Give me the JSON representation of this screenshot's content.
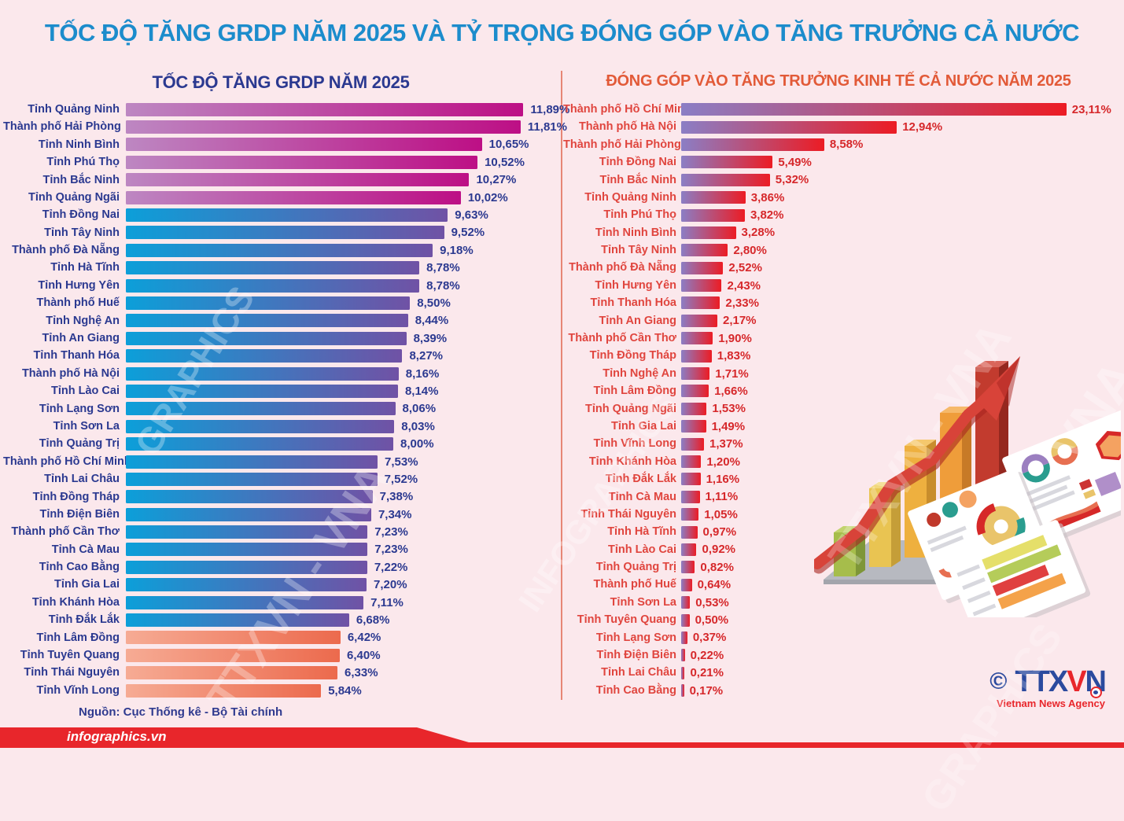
{
  "page": {
    "title": "TỐC ĐỘ TĂNG GRDP NĂM 2025 VÀ TỶ TRỌNG ĐÓNG GÓP VÀO TĂNG TRƯỞNG CẢ NƯỚC",
    "source": "Nguồn: Cục Thống kê - Bộ Tài chính",
    "footer_brand": "infographics.vn",
    "logo": {
      "copyright": "©",
      "part1": "TTX",
      "part2": "V",
      "part3": "N",
      "tagline": "Vietnam News Agency"
    },
    "watermarks": {
      "w1": "GRAPHICS",
      "w2": "TTXVN - VNA",
      "w3": "INFOGRAPHICS",
      "w4": "TTXVN - VNA",
      "w5": "VNA",
      "w6": "GRAPHICS"
    },
    "colors": {
      "background": "#fbe8ec",
      "main_title": "#1c8ccc",
      "left_title": "#2b3990",
      "right_title": "#e25a38",
      "left_text": "#2b3990",
      "right_label": "#e0453e",
      "right_value": "#d6282b",
      "footer_bar": "#e8262b"
    }
  },
  "chart_data": [
    {
      "type": "bar",
      "orientation": "horizontal",
      "title": "TỐC ĐỘ TĂNG GRDP NĂM 2025",
      "unit": "%",
      "xlim": [
        0,
        12
      ],
      "grid": false,
      "legend": "none",
      "groups": {
        "magenta": [
          "#bd87c2",
          "#bd0f85"
        ],
        "blue": [
          "#0c9fd9",
          "#7052a5"
        ],
        "orange": [
          "#f6ab94",
          "#ec6a4d"
        ]
      },
      "bars": [
        {
          "label": "Tỉnh Quảng Ninh",
          "value": 11.89,
          "display": "11,89%",
          "group": "magenta"
        },
        {
          "label": "Thành phố Hải Phòng",
          "value": 11.81,
          "display": "11,81%",
          "group": "magenta"
        },
        {
          "label": "Tỉnh Ninh Bình",
          "value": 10.65,
          "display": "10,65%",
          "group": "magenta"
        },
        {
          "label": "Tỉnh Phú Thọ",
          "value": 10.52,
          "display": "10,52%",
          "group": "magenta"
        },
        {
          "label": "Tỉnh Bắc Ninh",
          "value": 10.27,
          "display": "10,27%",
          "group": "magenta"
        },
        {
          "label": "Tỉnh Quảng Ngãi",
          "value": 10.02,
          "display": "10,02%",
          "group": "magenta"
        },
        {
          "label": "Tỉnh Đồng Nai",
          "value": 9.63,
          "display": "9,63%",
          "group": "blue"
        },
        {
          "label": "Tỉnh Tây Ninh",
          "value": 9.52,
          "display": "9,52%",
          "group": "blue"
        },
        {
          "label": "Thành phố Đà Nẵng",
          "value": 9.18,
          "display": "9,18%",
          "group": "blue"
        },
        {
          "label": "Tỉnh Hà Tĩnh",
          "value": 8.78,
          "display": "8,78%",
          "group": "blue"
        },
        {
          "label": "Tỉnh Hưng Yên",
          "value": 8.78,
          "display": "8,78%",
          "group": "blue"
        },
        {
          "label": "Thành phố Huế",
          "value": 8.5,
          "display": "8,50%",
          "group": "blue"
        },
        {
          "label": "Tỉnh Nghệ An",
          "value": 8.44,
          "display": "8,44%",
          "group": "blue"
        },
        {
          "label": "Tỉnh An Giang",
          "value": 8.39,
          "display": "8,39%",
          "group": "blue"
        },
        {
          "label": "Tỉnh Thanh Hóa",
          "value": 8.27,
          "display": "8,27%",
          "group": "blue"
        },
        {
          "label": "Thành phố Hà Nội",
          "value": 8.16,
          "display": "8,16%",
          "group": "blue"
        },
        {
          "label": "Tỉnh Lào Cai",
          "value": 8.14,
          "display": "8,14%",
          "group": "blue"
        },
        {
          "label": "Tỉnh Lạng Sơn",
          "value": 8.06,
          "display": "8,06%",
          "group": "blue"
        },
        {
          "label": "Tỉnh Sơn La",
          "value": 8.03,
          "display": "8,03%",
          "group": "blue"
        },
        {
          "label": "Tỉnh Quảng Trị",
          "value": 8.0,
          "display": "8,00%",
          "group": "blue"
        },
        {
          "label": "Thành phố Hồ Chí Minh",
          "value": 7.53,
          "display": "7,53%",
          "group": "blue"
        },
        {
          "label": "Tỉnh Lai Châu",
          "value": 7.52,
          "display": "7,52%",
          "group": "blue"
        },
        {
          "label": "Tỉnh Đồng Tháp",
          "value": 7.38,
          "display": "7,38%",
          "group": "blue"
        },
        {
          "label": "Tỉnh Điện Biên",
          "value": 7.34,
          "display": "7,34%",
          "group": "blue"
        },
        {
          "label": "Thành phố Cần Thơ",
          "value": 7.23,
          "display": "7,23%",
          "group": "blue"
        },
        {
          "label": "Tỉnh Cà Mau",
          "value": 7.23,
          "display": "7,23%",
          "group": "blue"
        },
        {
          "label": "Tỉnh Cao Bằng",
          "value": 7.22,
          "display": "7,22%",
          "group": "blue"
        },
        {
          "label": "Tỉnh Gia Lai",
          "value": 7.2,
          "display": "7,20%",
          "group": "blue"
        },
        {
          "label": "Tỉnh Khánh Hòa",
          "value": 7.11,
          "display": "7,11%",
          "group": "blue"
        },
        {
          "label": "Tỉnh Đắk Lắk",
          "value": 6.68,
          "display": "6,68%",
          "group": "blue"
        },
        {
          "label": "Tỉnh Lâm Đồng",
          "value": 6.42,
          "display": "6,42%",
          "group": "orange"
        },
        {
          "label": "Tỉnh Tuyên Quang",
          "value": 6.4,
          "display": "6,40%",
          "group": "orange"
        },
        {
          "label": "Tỉnh Thái Nguyên",
          "value": 6.33,
          "display": "6,33%",
          "group": "orange"
        },
        {
          "label": "Tỉnh Vĩnh Long",
          "value": 5.84,
          "display": "5,84%",
          "group": "orange"
        }
      ]
    },
    {
      "type": "bar",
      "orientation": "horizontal",
      "title": "ĐÓNG GÓP VÀO TĂNG TRƯỞNG KINH TẾ CẢ NƯỚC NĂM 2025",
      "unit": "%",
      "xlim": [
        0,
        23.5
      ],
      "grid": false,
      "legend": "none",
      "groups": {
        "redblue": [
          "#8b7ec5",
          "#ec1c24"
        ]
      },
      "bars": [
        {
          "label": "Thành phố Hồ Chí Minh",
          "value": 23.11,
          "display": "23,11%",
          "group": "redblue"
        },
        {
          "label": "Thành phố Hà Nội",
          "value": 12.94,
          "display": "12,94%",
          "group": "redblue"
        },
        {
          "label": "Thành phố Hải Phòng",
          "value": 8.58,
          "display": "8,58%",
          "group": "redblue"
        },
        {
          "label": "Tỉnh Đồng Nai",
          "value": 5.49,
          "display": "5,49%",
          "group": "redblue"
        },
        {
          "label": "Tỉnh Bắc Ninh",
          "value": 5.32,
          "display": "5,32%",
          "group": "redblue"
        },
        {
          "label": "Tỉnh Quảng Ninh",
          "value": 3.86,
          "display": "3,86%",
          "group": "redblue"
        },
        {
          "label": "Tỉnh Phú Thọ",
          "value": 3.82,
          "display": "3,82%",
          "group": "redblue"
        },
        {
          "label": "Tỉnh Ninh Bình",
          "value": 3.28,
          "display": "3,28%",
          "group": "redblue"
        },
        {
          "label": "Tỉnh Tây Ninh",
          "value": 2.8,
          "display": "2,80%",
          "group": "redblue"
        },
        {
          "label": "Thành phố Đà Nẵng",
          "value": 2.52,
          "display": "2,52%",
          "group": "redblue"
        },
        {
          "label": "Tỉnh Hưng Yên",
          "value": 2.43,
          "display": "2,43%",
          "group": "redblue"
        },
        {
          "label": "Tỉnh Thanh Hóa",
          "value": 2.33,
          "display": "2,33%",
          "group": "redblue"
        },
        {
          "label": "Tỉnh An Giang",
          "value": 2.17,
          "display": "2,17%",
          "group": "redblue"
        },
        {
          "label": "Thành phố Cần Thơ",
          "value": 1.9,
          "display": "1,90%",
          "group": "redblue"
        },
        {
          "label": "Tỉnh Đồng Tháp",
          "value": 1.83,
          "display": "1,83%",
          "group": "redblue"
        },
        {
          "label": "Tỉnh Nghệ An",
          "value": 1.71,
          "display": "1,71%",
          "group": "redblue"
        },
        {
          "label": "Tỉnh Lâm Đồng",
          "value": 1.66,
          "display": "1,66%",
          "group": "redblue"
        },
        {
          "label": "Tỉnh Quảng Ngãi",
          "value": 1.53,
          "display": "1,53%",
          "group": "redblue"
        },
        {
          "label": "Tỉnh Gia Lai",
          "value": 1.49,
          "display": "1,49%",
          "group": "redblue"
        },
        {
          "label": "Tỉnh Vĩnh Long",
          "value": 1.37,
          "display": "1,37%",
          "group": "redblue"
        },
        {
          "label": "Tỉnh Khánh Hòa",
          "value": 1.2,
          "display": "1,20%",
          "group": "redblue"
        },
        {
          "label": "Tỉnh Đắk Lắk",
          "value": 1.16,
          "display": "1,16%",
          "group": "redblue"
        },
        {
          "label": "Tỉnh Cà Mau",
          "value": 1.11,
          "display": "1,11%",
          "group": "redblue"
        },
        {
          "label": "Tỉnh Thái Nguyên",
          "value": 1.05,
          "display": "1,05%",
          "group": "redblue"
        },
        {
          "label": "Tỉnh Hà Tĩnh",
          "value": 0.97,
          "display": "0,97%",
          "group": "redblue"
        },
        {
          "label": "Tỉnh Lào Cai",
          "value": 0.92,
          "display": "0,92%",
          "group": "redblue"
        },
        {
          "label": "Tỉnh Quảng Trị",
          "value": 0.82,
          "display": "0,82%",
          "group": "redblue"
        },
        {
          "label": "Thành phố Huế",
          "value": 0.64,
          "display": "0,64%",
          "group": "redblue"
        },
        {
          "label": "Tỉnh Sơn La",
          "value": 0.53,
          "display": "0,53%",
          "group": "redblue"
        },
        {
          "label": "Tỉnh Tuyên Quang",
          "value": 0.5,
          "display": "0,50%",
          "group": "redblue"
        },
        {
          "label": "Tỉnh Lạng Sơn",
          "value": 0.37,
          "display": "0,37%",
          "group": "redblue"
        },
        {
          "label": "Tỉnh Điện Biên",
          "value": 0.22,
          "display": "0,22%",
          "group": "redblue"
        },
        {
          "label": "Tỉnh Lai Châu",
          "value": 0.21,
          "display": "0,21%",
          "group": "redblue"
        },
        {
          "label": "Tỉnh Cao Bằng",
          "value": 0.17,
          "display": "0,17%",
          "group": "redblue"
        }
      ]
    }
  ]
}
